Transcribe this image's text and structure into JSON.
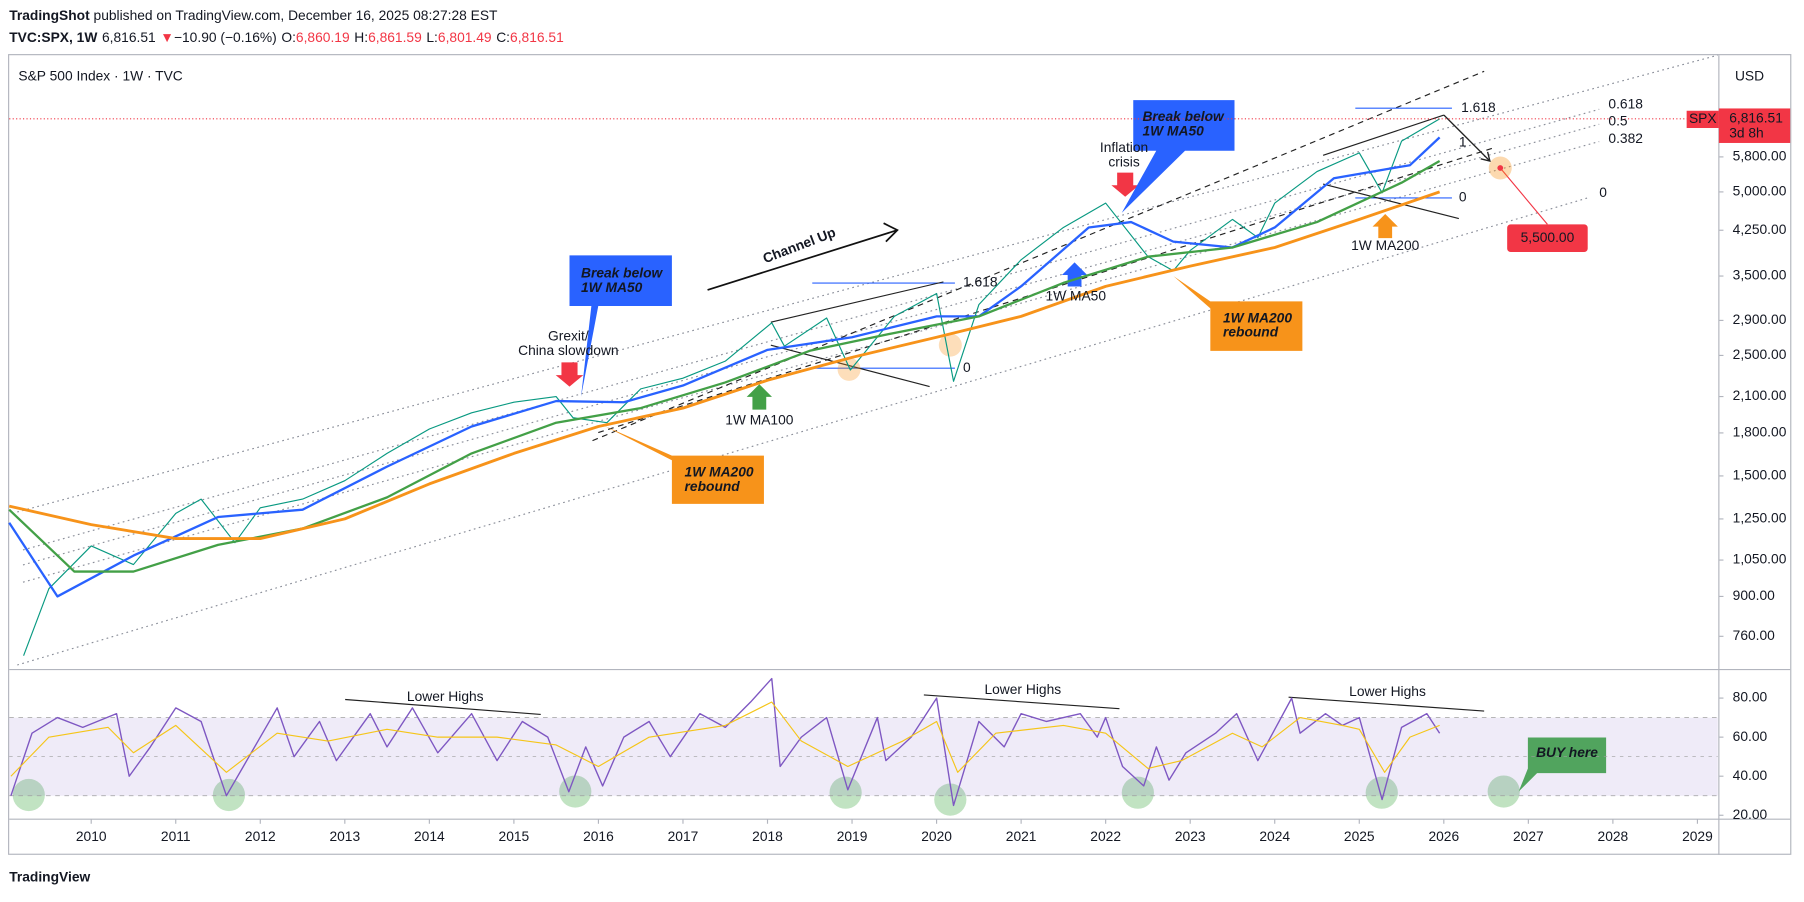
{
  "header": {
    "line1": [
      "TradingShot",
      "published on TradingView.com, December 16, 2025 08:27:28 EST"
    ],
    "line2": [
      {
        "text": "TVC:SPX, 1W",
        "color": "#131722"
      },
      {
        "text": "6,816.51",
        "color": "#131722"
      },
      {
        "text": "▼",
        "color": "#f23645"
      },
      {
        "text": "−10.90 (−0.16%)",
        "color": "#131722"
      },
      {
        "text": "O:",
        "color": "#131722"
      },
      {
        "text": "6,860.19",
        "color": "#f23645"
      },
      {
        "text": "H:",
        "color": "#131722"
      },
      {
        "text": "6,861.59",
        "color": "#f23645"
      },
      {
        "text": "L:",
        "color": "#131722"
      },
      {
        "text": "6,801.49",
        "color": "#f23645"
      },
      {
        "text": "C:",
        "color": "#131722"
      },
      {
        "text": "6,816.51",
        "color": "#f23645"
      }
    ]
  },
  "footer": "TradingView",
  "chart_data": [
    {
      "type": "line",
      "title": "S&P 500 Index · 1W · TVC",
      "y_axis_label": "USD",
      "log_scale": true,
      "grid": false,
      "xlim": [
        2009.03,
        2029.24
      ],
      "xticks": [
        2010,
        2011,
        2012,
        2013,
        2014,
        2015,
        2016,
        2017,
        2018,
        2019,
        2020,
        2021,
        2022,
        2023,
        2024,
        2025,
        2026,
        2027,
        2028,
        2029
      ],
      "ylim": [
        660,
        8925
      ],
      "yticks": [
        {
          "value": 760,
          "label": "760.00"
        },
        {
          "value": 900,
          "label": "900.00"
        },
        {
          "value": 1050,
          "label": "1,050.00"
        },
        {
          "value": 1250,
          "label": "1,250.00"
        },
        {
          "value": 1500,
          "label": "1,500.00"
        },
        {
          "value": 1800,
          "label": "1,800.00"
        },
        {
          "value": 2100,
          "label": "2,100.00"
        },
        {
          "value": 2500,
          "label": "2,500.00"
        },
        {
          "value": 2900,
          "label": "2,900.00"
        },
        {
          "value": 3500,
          "label": "3,500.00"
        },
        {
          "value": 4250,
          "label": "4,250.00"
        },
        {
          "value": 5000,
          "label": "5,000.00"
        },
        {
          "value": 5800,
          "label": "5,800.00"
        }
      ],
      "last_price": {
        "symbol": "SPX",
        "value": 6816.51,
        "label": "6,816.51",
        "countdown": "3d 8h",
        "color": "#f23645"
      },
      "series": [
        {
          "color": "#089981",
          "width": 1,
          "x": [
            2009.2,
            2009.5,
            2010.0,
            2010.5,
            2011.0,
            2011.3,
            2011.7,
            2012.0,
            2012.5,
            2013.0,
            2013.5,
            2014.0,
            2014.5,
            2015.0,
            2015.5,
            2015.7,
            2016.1,
            2016.5,
            2017.0,
            2017.5,
            2018.05,
            2018.2,
            2018.7,
            2018.98,
            2019.5,
            2020.0,
            2020.2,
            2020.5,
            2021.0,
            2021.5,
            2022.0,
            2022.5,
            2022.8,
            2023.0,
            2023.5,
            2023.8,
            2024.0,
            2024.5,
            2025.0,
            2025.27,
            2025.5,
            2025.95
          ],
          "values": [
            700,
            930,
            1115,
            1030,
            1280,
            1360,
            1130,
            1310,
            1360,
            1470,
            1650,
            1830,
            1960,
            2050,
            2100,
            1920,
            1880,
            2170,
            2270,
            2440,
            2870,
            2600,
            2930,
            2350,
            2950,
            3250,
            2240,
            3100,
            3750,
            4300,
            4770,
            3800,
            3580,
            3900,
            4450,
            4120,
            4770,
            5450,
            5900,
            4980,
            6200,
            6816.51
          ]
        },
        {
          "color": "#2962ff",
          "width": 2,
          "x": [
            2009.03,
            2009.6,
            2010.5,
            2011.5,
            2012.5,
            2013.5,
            2014.5,
            2015.5,
            2016.3,
            2017.0,
            2018.0,
            2019.0,
            2020.0,
            2020.5,
            2021.0,
            2021.8,
            2022.3,
            2022.8,
            2023.5,
            2024.0,
            2024.7,
            2025.3,
            2025.6,
            2025.95
          ],
          "values": [
            1230,
            900,
            1070,
            1260,
            1300,
            1560,
            1850,
            2060,
            2050,
            2200,
            2560,
            2700,
            2950,
            2950,
            3350,
            4300,
            4400,
            4050,
            3950,
            4300,
            5300,
            5500,
            5600,
            6300
          ]
        },
        {
          "color": "#43a047",
          "width": 2,
          "x": [
            2009.03,
            2009.8,
            2010.5,
            2011.5,
            2012.5,
            2013.5,
            2014.5,
            2015.5,
            2016.5,
            2017.5,
            2018.5,
            2019.5,
            2020.5,
            2021.5,
            2022.5,
            2023.5,
            2024.5,
            2025.5,
            2025.95
          ],
          "values": [
            1300,
            1000,
            1000,
            1120,
            1200,
            1370,
            1650,
            1880,
            2000,
            2230,
            2550,
            2750,
            2950,
            3400,
            3800,
            3950,
            4400,
            5200,
            5700
          ]
        },
        {
          "color": "#f7931a",
          "width": 2.5,
          "x": [
            2009.03,
            2010,
            2011,
            2012,
            2013,
            2014,
            2015,
            2016,
            2017,
            2018,
            2019,
            2020,
            2021,
            2022,
            2023,
            2024,
            2025,
            2025.95
          ],
          "values": [
            1320,
            1220,
            1150,
            1150,
            1250,
            1450,
            1650,
            1850,
            2000,
            2250,
            2480,
            2700,
            2950,
            3350,
            3650,
            3950,
            4450,
            5000
          ]
        }
      ]
    },
    {
      "type": "line",
      "grid": false,
      "xlim": [
        2009.03,
        2029.24
      ],
      "ylim": [
        18,
        94
      ],
      "yticks": [
        {
          "value": 20,
          "label": "20.00"
        },
        {
          "value": 40,
          "label": "40.00"
        },
        {
          "value": 60,
          "label": "60.00"
        },
        {
          "value": 80,
          "label": "80.00"
        }
      ],
      "band": [
        30,
        70
      ],
      "band_color": "#7e57c2",
      "midline": 50,
      "series": [
        {
          "color": "#7e57c2",
          "width": 1.2,
          "x": [
            2009.05,
            2009.3,
            2009.6,
            2009.9,
            2010.3,
            2010.45,
            2010.7,
            2011.0,
            2011.3,
            2011.6,
            2011.8,
            2012.2,
            2012.4,
            2012.7,
            2012.9,
            2013.3,
            2013.5,
            2013.8,
            2014.1,
            2014.5,
            2014.8,
            2015.1,
            2015.4,
            2015.65,
            2015.85,
            2016.05,
            2016.3,
            2016.6,
            2016.85,
            2017.2,
            2017.5,
            2017.8,
            2018.05,
            2018.15,
            2018.4,
            2018.7,
            2018.95,
            2019.3,
            2019.4,
            2019.7,
            2020.0,
            2020.2,
            2020.5,
            2020.8,
            2021.0,
            2021.3,
            2021.7,
            2021.9,
            2022.0,
            2022.2,
            2022.45,
            2022.6,
            2022.75,
            2022.95,
            2023.3,
            2023.55,
            2023.8,
            2024.2,
            2024.3,
            2024.6,
            2024.8,
            2025.0,
            2025.27,
            2025.5,
            2025.8,
            2025.95
          ],
          "values": [
            30,
            62,
            70,
            65,
            72,
            40,
            55,
            75,
            68,
            30,
            45,
            75,
            50,
            68,
            48,
            72,
            55,
            75,
            52,
            72,
            48,
            68,
            60,
            32,
            55,
            35,
            60,
            68,
            50,
            72,
            65,
            78,
            90,
            45,
            60,
            70,
            33,
            70,
            48,
            60,
            80,
            25,
            68,
            55,
            72,
            68,
            72,
            60,
            70,
            45,
            35,
            55,
            38,
            52,
            62,
            72,
            48,
            80,
            62,
            72,
            66,
            70,
            28,
            65,
            72,
            62
          ]
        },
        {
          "color": "#f5c518",
          "width": 1,
          "x": [
            2009.05,
            2009.5,
            2010.2,
            2010.5,
            2011.0,
            2011.6,
            2012.2,
            2012.8,
            2013.5,
            2014.1,
            2014.8,
            2015.5,
            2016.0,
            2016.6,
            2017.5,
            2018.05,
            2018.4,
            2018.95,
            2019.6,
            2020.0,
            2020.25,
            2020.7,
            2021.5,
            2022.0,
            2022.5,
            2022.9,
            2023.5,
            2023.85,
            2024.3,
            2024.8,
            2025.0,
            2025.3,
            2025.6,
            2025.95
          ],
          "values": [
            40,
            60,
            65,
            52,
            66,
            42,
            62,
            58,
            64,
            60,
            60,
            56,
            45,
            60,
            66,
            78,
            58,
            45,
            58,
            68,
            42,
            62,
            66,
            62,
            44,
            48,
            62,
            55,
            70,
            66,
            64,
            42,
            60,
            66
          ]
        }
      ]
    }
  ],
  "annotations": [
    "Channel Up",
    [
      "Grexit/",
      "China slowdown"
    ],
    [
      "Break below",
      "1W MA50"
    ],
    "1W MA100",
    [
      "1W MA200",
      "rebound"
    ],
    "1.618",
    "0",
    "1W MA50",
    [
      "Inflation",
      "crisis"
    ],
    [
      "Break below",
      "1W MA50"
    ],
    [
      "1W MA200",
      "rebound"
    ],
    "1.618",
    "1",
    "0",
    "1W MA200",
    "0.618",
    "0.5",
    "0.382",
    "0",
    "5,500.00",
    "Lower Highs",
    "Lower Highs",
    "Lower Highs",
    "BUY here"
  ]
}
